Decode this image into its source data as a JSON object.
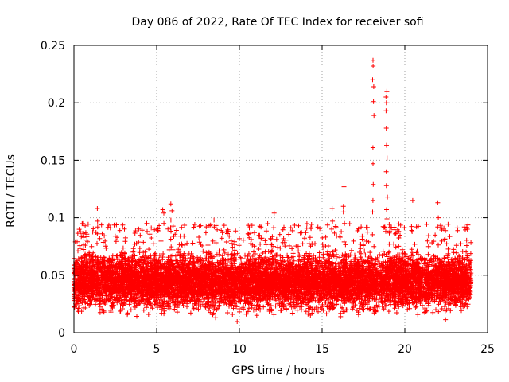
{
  "chart_data": {
    "type": "scatter",
    "title": "Day 086 of 2022, Rate Of TEC Index for receiver sofi",
    "xlabel": "GPS time / hours",
    "ylabel": "ROTI / TECUs",
    "xlim": [
      0,
      25
    ],
    "ylim": [
      0,
      0.25
    ],
    "x_ticks": [
      0,
      5,
      10,
      15,
      20,
      25
    ],
    "y_ticks": [
      0,
      0.05,
      0.1,
      0.15,
      0.2,
      0.25
    ],
    "x_tick_labels": [
      "0",
      "5",
      "10",
      "15",
      "20",
      "25"
    ],
    "y_tick_labels": [
      "0",
      "0.05",
      "0.1",
      "0.15",
      "0.2",
      "0.25"
    ],
    "grid": true,
    "marker": "+",
    "marker_color": "#ff0000",
    "series": [
      {
        "name": "ROTI",
        "description_values": "dense cloud of ROTI points from 0 to 24 h, mostly between 0.01 and 0.09 TECU/min, centred near 0.045",
        "band": {
          "x_start": 0,
          "x_end": 24,
          "low": 0.015,
          "high": 0.085,
          "typical": 0.045
        },
        "peaks": [
          {
            "x": 1.4,
            "values": [
              0.086,
              0.092,
              0.097,
              0.108
            ]
          },
          {
            "x": 4.4,
            "values": [
              0.088,
              0.095
            ]
          },
          {
            "x": 5.4,
            "values": [
              0.095,
              0.104,
              0.107
            ]
          },
          {
            "x": 5.9,
            "values": [
              0.098,
              0.106,
              0.112
            ]
          },
          {
            "x": 8.5,
            "values": [
              0.092,
              0.098
            ]
          },
          {
            "x": 12.1,
            "values": [
              0.104
            ]
          },
          {
            "x": 15.6,
            "values": [
              0.097,
              0.108
            ]
          },
          {
            "x": 16.3,
            "values": [
              0.095,
              0.105,
              0.11,
              0.127
            ]
          },
          {
            "x": 18.1,
            "values": [
              0.105,
              0.115,
              0.129,
              0.147,
              0.161,
              0.189,
              0.201,
              0.214,
              0.22,
              0.232,
              0.237
            ]
          },
          {
            "x": 18.9,
            "values": [
              0.099,
              0.107,
              0.118,
              0.128,
              0.14,
              0.152,
              0.163,
              0.178,
              0.193,
              0.2,
              0.205,
              0.21
            ]
          },
          {
            "x": 20.5,
            "values": [
              0.115
            ]
          },
          {
            "x": 22.0,
            "values": [
              0.092,
              0.1,
              0.113
            ]
          }
        ]
      }
    ]
  }
}
